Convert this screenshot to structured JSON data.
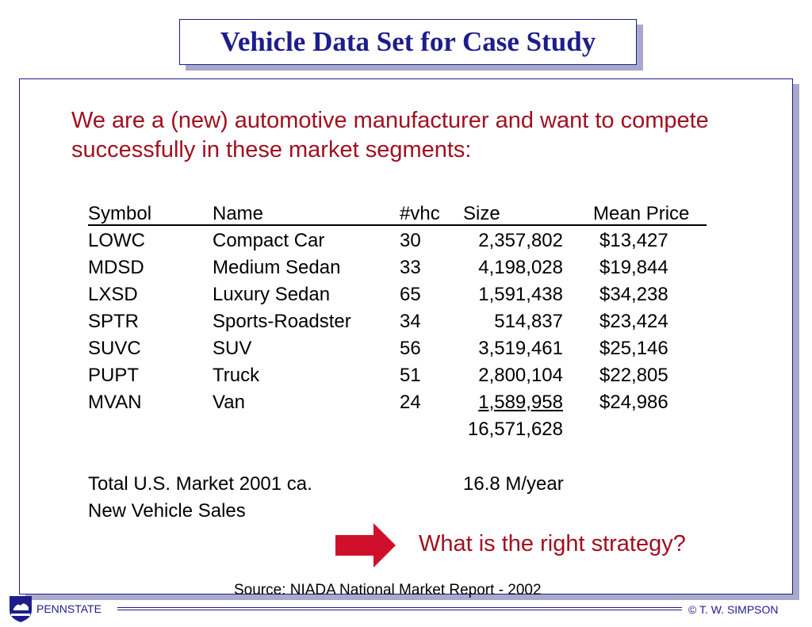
{
  "title": "Vehicle Data Set for Case Study",
  "intro": "We are a (new) automotive manufacturer and want to compete successfully in these market segments:",
  "table": {
    "headers": {
      "symbol": "Symbol",
      "name": "Name",
      "vhc": "#vhc",
      "size": "Size",
      "price": "Mean Price"
    },
    "rows": [
      {
        "symbol": "LOWC",
        "name": "Compact Car",
        "vhc": "30",
        "size": "2,357,802",
        "price": "$13,427"
      },
      {
        "symbol": "MDSD",
        "name": "Medium Sedan",
        "vhc": "33",
        "size": "4,198,028",
        "price": "$19,844"
      },
      {
        "symbol": "LXSD",
        "name": "Luxury Sedan",
        "vhc": "65",
        "size": "1,591,438",
        "price": "$34,238"
      },
      {
        "symbol": "SPTR",
        "name": "Sports-Roadster",
        "vhc": "34",
        "size": "514,837",
        "price": "$23,424"
      },
      {
        "symbol": "SUVC",
        "name": "SUV",
        "vhc": "56",
        "size": "3,519,461",
        "price": "$25,146"
      },
      {
        "symbol": "PUPT",
        "name": "Truck",
        "vhc": "51",
        "size": "2,800,104",
        "price": "$22,805"
      },
      {
        "symbol": "MVAN",
        "name": "Van",
        "vhc": "24",
        "size": "1,589,958",
        "price": "$24,986"
      }
    ],
    "total_size": "16,571,628"
  },
  "market": {
    "label_line1": "Total U.S. Market 2001 ca.",
    "label_line2": "New Vehicle Sales",
    "value": "16.8 M/year"
  },
  "question": "What is the right strategy?",
  "source": "Source: NIADA National Market Report - 2002",
  "footer": {
    "logo_text": "PENNSTATE",
    "copyright": "© T. W. SIMPSON"
  },
  "colors": {
    "accent_red": "#a01020",
    "navy": "#1d1d8c",
    "shadow": "#a9a9cc"
  },
  "icons": {
    "arrow": "right-arrow-icon",
    "logo": "penn-state-shield-icon"
  }
}
